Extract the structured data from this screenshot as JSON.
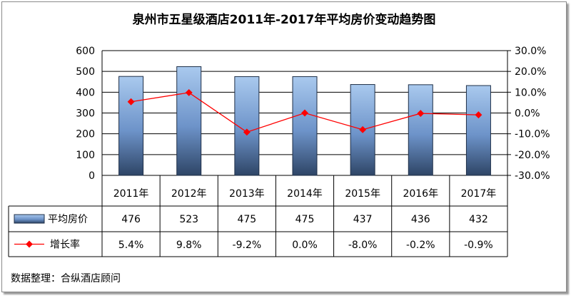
{
  "chart_data": {
    "type": "bar",
    "title": "泉州市五星级酒店2011年-2017年平均房价变动趋势图",
    "categories": [
      "2011年",
      "2012年",
      "2013年",
      "2014年",
      "2015年",
      "2016年",
      "2017年"
    ],
    "series": [
      {
        "name": "平均房价",
        "type": "bar",
        "axis": "left",
        "values": [
          476,
          523,
          475,
          475,
          437,
          436,
          432
        ],
        "labels": [
          "476",
          "523",
          "475",
          "475",
          "437",
          "436",
          "432"
        ],
        "color": "#5b8fd6"
      },
      {
        "name": "增长率",
        "type": "line",
        "axis": "right",
        "values": [
          5.4,
          9.8,
          -9.2,
          0.0,
          -8.0,
          -0.2,
          -0.9
        ],
        "labels": [
          "5.4%",
          "9.8%",
          "-9.2%",
          "0.0%",
          "-8.0%",
          "-0.2%",
          "-0.9%"
        ],
        "color": "#ff0000"
      }
    ],
    "yleft": {
      "range": [
        0,
        600
      ],
      "ticks": [
        "600",
        "500",
        "400",
        "300",
        "200",
        "100",
        "0"
      ]
    },
    "yright": {
      "range": [
        -30,
        30
      ],
      "ticks": [
        "30.0%",
        "20.0%",
        "10.0%",
        "0.0%",
        "-10.0%",
        "-20.0%",
        "-30.0%"
      ]
    },
    "grid": true,
    "legend": "data-table",
    "source": "数据整理：合纵酒店顾问"
  }
}
